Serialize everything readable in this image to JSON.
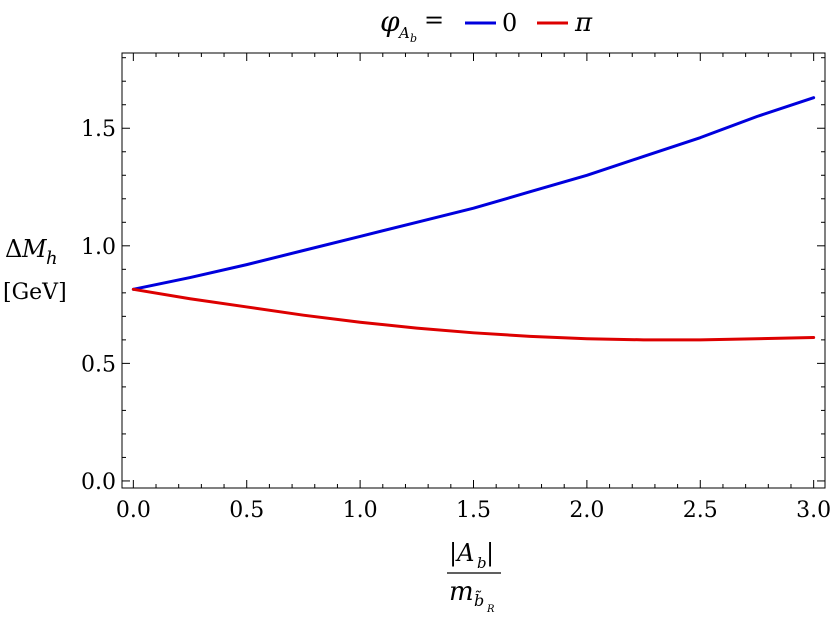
{
  "chart_data": {
    "type": "line",
    "title": "",
    "legend": {
      "placement": "top-center",
      "symbol_main": "φ",
      "symbol_sub": "A",
      "symbol_sub2": "b",
      "equals": "="
    },
    "xlabel": {
      "numerator": "|A",
      "numerator_sub": "b",
      "numerator_close": "|",
      "denominator": "m",
      "denominator_sub": "b̃",
      "denominator_subsub": "R"
    },
    "ylabel": {
      "line1_prefix": "Δ",
      "line1_main": "M",
      "line1_sub": "h",
      "line2": "[GeV]"
    },
    "xlim": [
      -0.05,
      3.05
    ],
    "ylim": [
      -0.03,
      1.82
    ],
    "x_ticks": [
      0.0,
      0.5,
      1.0,
      1.5,
      2.0,
      2.5,
      3.0
    ],
    "x_tick_labels": [
      "0.0",
      "0.5",
      "1.0",
      "1.5",
      "2.0",
      "2.5",
      "3.0"
    ],
    "y_ticks": [
      0.0,
      0.5,
      1.0,
      1.5
    ],
    "y_tick_labels": [
      "0.0",
      "0.5",
      "1.0",
      "1.5"
    ],
    "grid": false,
    "x": [
      0.0,
      0.25,
      0.5,
      0.75,
      1.0,
      1.25,
      1.5,
      1.75,
      2.0,
      2.25,
      2.5,
      2.75,
      3.0
    ],
    "series": [
      {
        "name": "0",
        "color": "#0000dd",
        "values": [
          0.815,
          0.865,
          0.92,
          0.98,
          1.04,
          1.1,
          1.16,
          1.23,
          1.3,
          1.38,
          1.46,
          1.55,
          1.63
        ]
      },
      {
        "name": "π",
        "color": "#dd0000",
        "values": [
          0.815,
          0.775,
          0.74,
          0.705,
          0.675,
          0.65,
          0.63,
          0.615,
          0.605,
          0.6,
          0.6,
          0.605,
          0.61
        ]
      }
    ]
  }
}
